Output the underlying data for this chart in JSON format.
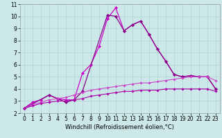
{
  "xlabel": "Windchill (Refroidissement éolien,°C)",
  "bg_color": "#cce8e8",
  "grid_color": "#aad4d4",
  "line_color1": "#cc00cc",
  "line_color2": "#880088",
  "line_color3": "#cc44cc",
  "line_color4": "#aa00aa",
  "xlim": [
    -0.5,
    23.5
  ],
  "ylim": [
    2,
    11
  ],
  "xticks": [
    0,
    1,
    2,
    3,
    4,
    5,
    6,
    7,
    8,
    9,
    10,
    11,
    12,
    13,
    14,
    15,
    16,
    17,
    18,
    19,
    20,
    21,
    22,
    23
  ],
  "yticks": [
    2,
    3,
    4,
    5,
    6,
    7,
    8,
    9,
    10,
    11
  ],
  "series1_x": [
    0,
    1,
    2,
    3,
    4,
    5,
    6,
    7,
    8,
    9,
    10,
    11,
    12,
    13,
    14,
    15,
    16,
    17,
    18,
    19,
    20,
    21,
    22,
    23
  ],
  "series1_y": [
    2.4,
    2.9,
    3.1,
    3.5,
    3.2,
    3.1,
    3.1,
    5.3,
    6.0,
    7.5,
    9.8,
    10.7,
    8.8,
    9.3,
    9.6,
    8.5,
    7.3,
    6.3,
    5.2,
    5.0,
    5.1,
    5.0,
    5.0,
    4.0
  ],
  "series2_x": [
    0,
    3,
    4,
    5,
    6,
    7,
    10,
    11,
    12,
    13,
    14,
    15,
    16,
    17,
    18,
    19,
    20,
    21,
    22,
    23
  ],
  "series2_y": [
    2.4,
    3.5,
    3.2,
    2.9,
    3.1,
    3.8,
    10.1,
    10.0,
    8.8,
    9.3,
    9.6,
    8.5,
    7.3,
    6.3,
    5.2,
    5.0,
    5.1,
    5.0,
    5.0,
    4.0
  ],
  "series3_x": [
    0,
    1,
    2,
    3,
    4,
    5,
    6,
    7,
    8,
    9,
    10,
    11,
    12,
    13,
    14,
    15,
    16,
    17,
    18,
    19,
    20,
    21,
    22,
    23
  ],
  "series3_y": [
    2.4,
    2.7,
    2.9,
    3.1,
    3.2,
    3.3,
    3.5,
    3.7,
    3.9,
    4.0,
    4.1,
    4.2,
    4.3,
    4.4,
    4.5,
    4.5,
    4.6,
    4.7,
    4.8,
    4.9,
    5.0,
    5.0,
    5.0,
    4.7
  ],
  "series4_x": [
    0,
    1,
    2,
    3,
    4,
    5,
    6,
    7,
    8,
    9,
    10,
    11,
    12,
    13,
    14,
    15,
    16,
    17,
    18,
    19,
    20,
    21,
    22,
    23
  ],
  "series4_y": [
    2.4,
    2.6,
    2.8,
    2.9,
    3.0,
    3.0,
    3.1,
    3.2,
    3.4,
    3.5,
    3.6,
    3.7,
    3.8,
    3.8,
    3.9,
    3.9,
    3.9,
    4.0,
    4.0,
    4.0,
    4.0,
    4.0,
    4.0,
    3.8
  ],
  "tick_fontsize": 5.5,
  "label_fontsize": 6.0
}
